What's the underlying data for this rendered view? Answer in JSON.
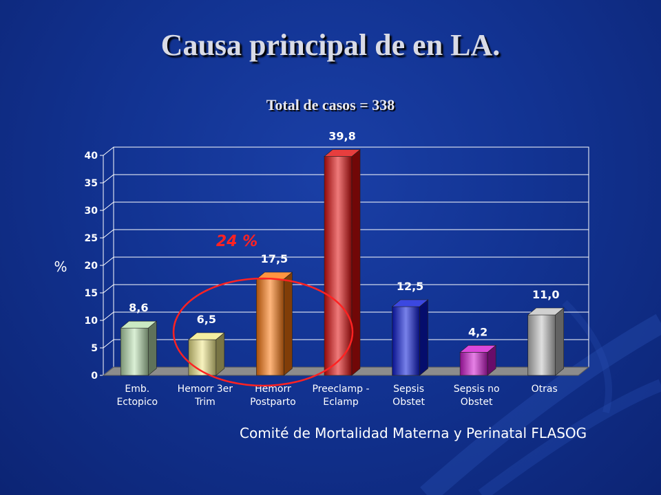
{
  "slide": {
    "title": "Causa principal de  en LA.",
    "subtitle": "Total de casos = 338",
    "footer": "Comité de Mortalidad Materna y Perinatal FLASOG"
  },
  "chart_data": {
    "type": "bar",
    "categories": [
      [
        "Emb.",
        "Ectopico"
      ],
      [
        "Hemorr 3er",
        "Trim"
      ],
      [
        "Hemorr",
        "Postparto"
      ],
      [
        "Preeclamp -",
        "Eclamp"
      ],
      [
        "Sepsis",
        "Obstet"
      ],
      [
        "Sepsis no",
        "Obstet"
      ],
      [
        "Otras"
      ]
    ],
    "values": [
      8.6,
      6.5,
      17.5,
      39.8,
      12.5,
      4.2,
      11.0
    ],
    "value_labels": [
      "8,6",
      "6,5",
      "17,5",
      "39,8",
      "12,5",
      "4,2",
      "11,0"
    ],
    "bar_colors": [
      "#bde3b4",
      "#f2ea8a",
      "#ff7a10",
      "#e10e0e",
      "#0a1ad8",
      "#d21ad2",
      "#c4c4c4"
    ],
    "ylabel": "%",
    "ylim": [
      0,
      40
    ],
    "yticks": [
      0,
      5,
      10,
      15,
      20,
      25,
      30,
      35,
      40
    ],
    "grid": true,
    "annotation": {
      "text": "24 %",
      "color": "#ff2222",
      "circled_categories": [
        1,
        2
      ]
    }
  }
}
